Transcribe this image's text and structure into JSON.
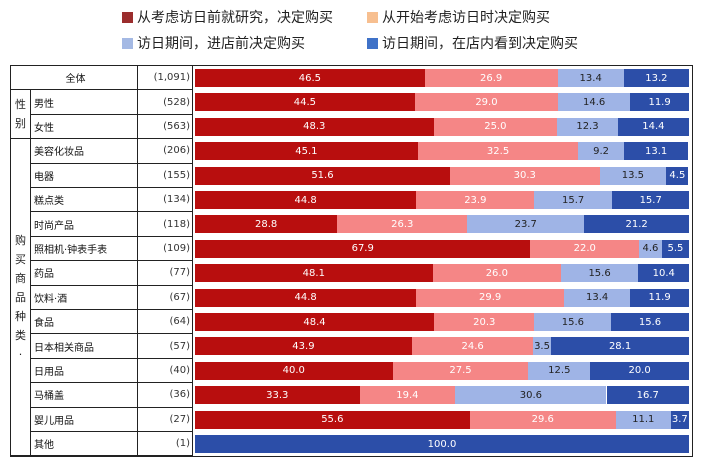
{
  "chart_data": {
    "type": "bar",
    "orientation": "horizontal-stacked-100",
    "legend": [
      {
        "label": "从考虑访日前就研究，决定购买",
        "color": "#9b2d2d"
      },
      {
        "label": "从开始考虑访日时决定购买",
        "color": "#f7bf90"
      },
      {
        "label": "访日期间，进店前决定购买",
        "color": "#a4b9e4"
      },
      {
        "label": "访日期间，在店内看到决定购买",
        "color": "#3f72c8"
      }
    ],
    "bar_colors": [
      "#b80e0e",
      "#f58686",
      "#9fb4e6",
      "#2c4ea8"
    ],
    "groups": {
      "gender": "性别",
      "category": "购买商品种类·"
    },
    "rows": [
      {
        "label": "全体",
        "n": "(1,091)",
        "values": [
          46.5,
          26.9,
          13.4,
          13.2
        ]
      },
      {
        "label": "男性",
        "n": "(528)",
        "values": [
          44.5,
          29.0,
          14.6,
          11.9
        ]
      },
      {
        "label": "女性",
        "n": "(563)",
        "values": [
          48.3,
          25.0,
          12.3,
          14.4
        ]
      },
      {
        "label": "美容化妆品",
        "n": "(206)",
        "values": [
          45.1,
          32.5,
          9.2,
          13.1
        ]
      },
      {
        "label": "电器",
        "n": "(155)",
        "values": [
          51.6,
          30.3,
          13.5,
          4.5
        ]
      },
      {
        "label": "糕点类",
        "n": "(134)",
        "values": [
          44.8,
          23.9,
          15.7,
          15.7
        ]
      },
      {
        "label": "时尚产品",
        "n": "(118)",
        "values": [
          28.8,
          26.3,
          23.7,
          21.2
        ]
      },
      {
        "label": "照相机·钟表手表",
        "n": "(109)",
        "values": [
          67.9,
          22.0,
          4.6,
          5.5
        ]
      },
      {
        "label": "药品",
        "n": "(77)",
        "values": [
          48.1,
          26.0,
          15.6,
          10.4
        ]
      },
      {
        "label": "饮料·酒",
        "n": "(67)",
        "values": [
          44.8,
          29.9,
          13.4,
          11.9
        ]
      },
      {
        "label": "食品",
        "n": "(64)",
        "values": [
          48.4,
          20.3,
          15.6,
          15.6
        ]
      },
      {
        "label": "日本相关商品",
        "n": "(57)",
        "values": [
          43.9,
          24.6,
          3.5,
          28.1
        ]
      },
      {
        "label": "日用品",
        "n": "(40)",
        "values": [
          40.0,
          27.5,
          12.5,
          20.0
        ]
      },
      {
        "label": "马桶盖",
        "n": "(36)",
        "values": [
          33.3,
          19.4,
          30.6,
          16.7
        ]
      },
      {
        "label": "婴儿用品",
        "n": "(27)",
        "values": [
          55.6,
          29.6,
          11.1,
          3.7
        ]
      },
      {
        "label": "其他",
        "n": "(1)",
        "values": [
          0,
          0,
          0,
          100.0
        ]
      }
    ]
  }
}
